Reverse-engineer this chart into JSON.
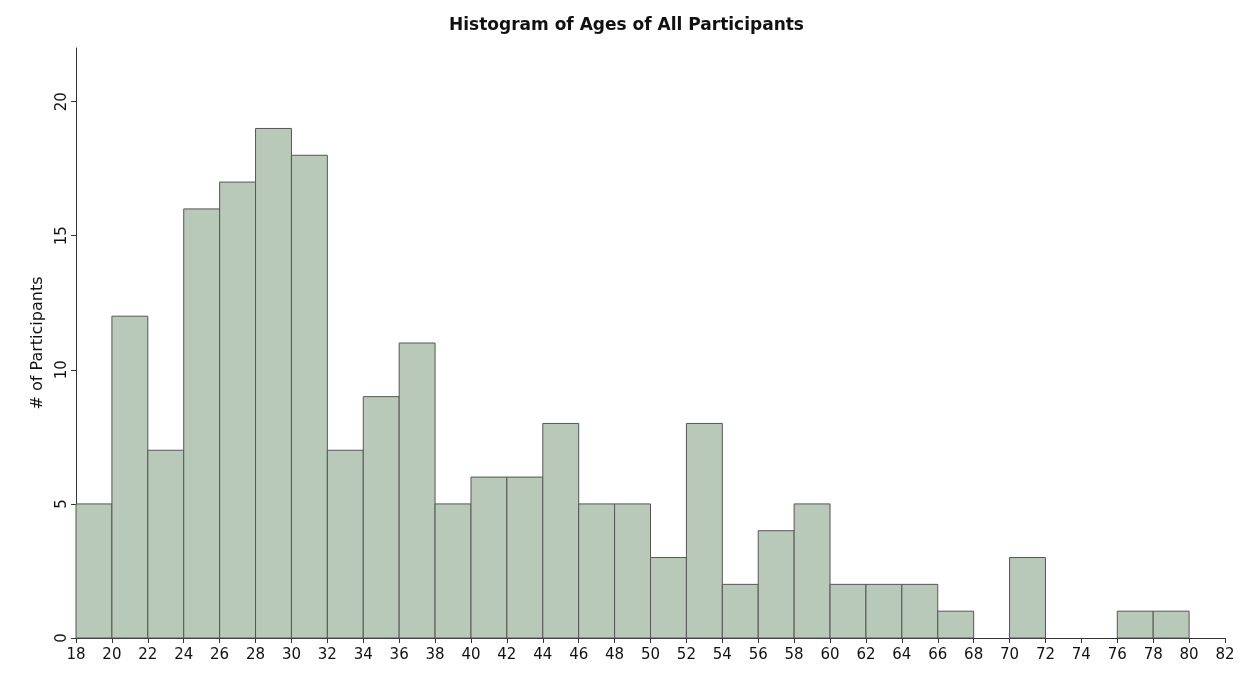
{
  "chart_data": {
    "type": "histogram",
    "title": "Histogram of Ages of All Participants",
    "ylabel": "# of Participants",
    "bins": [
      18,
      20,
      22,
      24,
      26,
      28,
      30,
      32,
      34,
      36,
      38,
      40,
      42,
      44,
      46,
      48,
      50,
      52,
      54,
      56,
      58,
      60,
      62,
      64,
      66,
      68,
      70,
      72,
      74,
      76,
      78,
      80
    ],
    "values": [
      5,
      12,
      7,
      16,
      17,
      19,
      18,
      7,
      9,
      11,
      5,
      6,
      6,
      8,
      5,
      5,
      3,
      8,
      2,
      4,
      5,
      2,
      2,
      2,
      1,
      0,
      3,
      0,
      0,
      1,
      1
    ],
    "color": "#b9c9b9",
    "xlim": [
      18,
      82
    ],
    "xticks": [
      18,
      20,
      22,
      24,
      26,
      28,
      30,
      32,
      34,
      36,
      38,
      40,
      42,
      44,
      46,
      48,
      50,
      52,
      54,
      56,
      58,
      60,
      62,
      64,
      66,
      68,
      70,
      72,
      74,
      76,
      78,
      80,
      82
    ],
    "ylim": [
      0,
      22
    ],
    "yticks": [
      0,
      5,
      10,
      15,
      20
    ],
    "grid": false
  }
}
